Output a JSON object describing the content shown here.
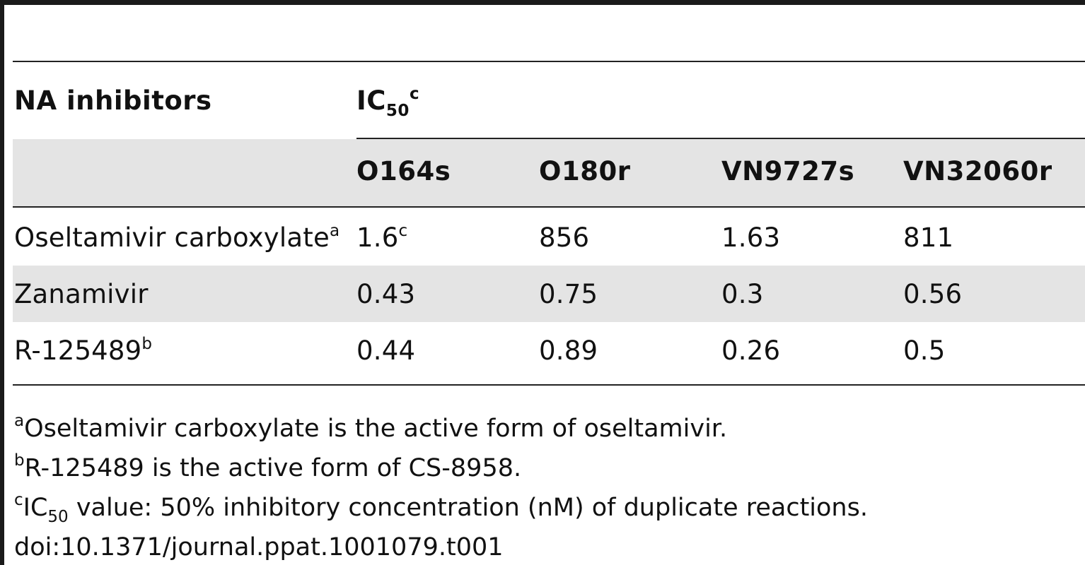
{
  "table": {
    "header": {
      "first_col": "NA inhibitors",
      "group": {
        "label": "IC",
        "sub": "50",
        "sup": "c"
      },
      "strains": [
        "O164s",
        "O180r",
        "VN9727s",
        "VN32060r"
      ]
    },
    "rows": [
      {
        "name": "Oseltamivir carboxylate",
        "name_sup": "a",
        "cells": [
          {
            "value": "1.6",
            "sup": "c"
          },
          {
            "value": "856"
          },
          {
            "value": "1.63"
          },
          {
            "value": "811"
          }
        ]
      },
      {
        "name": "Zanamivir",
        "cells": [
          {
            "value": "0.43"
          },
          {
            "value": "0.75"
          },
          {
            "value": "0.3"
          },
          {
            "value": "0.56"
          }
        ]
      },
      {
        "name": "R-125489",
        "name_sup": "b",
        "cells": [
          {
            "value": "0.44"
          },
          {
            "value": "0.89"
          },
          {
            "value": "0.26"
          },
          {
            "value": "0.5"
          }
        ]
      }
    ]
  },
  "footnotes": {
    "a": {
      "mark": "a",
      "text": "Oseltamivir carboxylate is the active form of oseltamivir."
    },
    "b": {
      "mark": "b",
      "text": "R-125489 is the active form of CS-8958."
    },
    "c": {
      "mark": "c",
      "text_pre": "IC",
      "sub": "50",
      "text": " value: 50% inhibitory concentration (nM) of duplicate reactions."
    }
  },
  "doi": "doi:10.1371/journal.ppat.1001079.t001",
  "colors": {
    "band": "#e4e4e4",
    "rule": "#222222",
    "frame": "#1a1a1a"
  }
}
